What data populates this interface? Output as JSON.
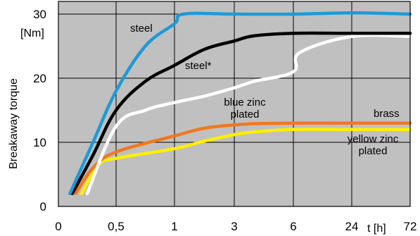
{
  "chart_data": {
    "type": "line",
    "title": "",
    "xlabel": "t [h]",
    "ylabel": "Breakaway torque",
    "yunit": "[Nm]",
    "x_ticks": [
      "0",
      "0,5",
      "1",
      "3",
      "6",
      "24",
      "72"
    ],
    "y_ticks": [
      "0",
      "10",
      "20",
      "30"
    ],
    "ylim": [
      0,
      30
    ],
    "grid": true,
    "colors": {
      "plot_bg": "#c0c0c0",
      "steel": "#1e9ad6",
      "steel*": "#000000",
      "blue zinc plated": "#ffffff",
      "brass": "#f07820",
      "yellow zinc plated": "#ffee00"
    },
    "series": [
      {
        "name": "steel",
        "label_lines": [
          "steel"
        ],
        "color": "#1e9ad6",
        "points": [
          [
            0.1,
            2
          ],
          [
            0.3,
            10
          ],
          [
            0.5,
            18
          ],
          [
            0.75,
            25
          ],
          [
            1,
            28.5
          ],
          [
            1.3,
            30
          ],
          [
            3,
            30
          ],
          [
            6,
            30
          ],
          [
            24,
            30.2
          ],
          [
            72,
            30
          ]
        ]
      },
      {
        "name": "steel*",
        "label_lines": [
          "steel*"
        ],
        "color": "#000000",
        "points": [
          [
            0.12,
            2
          ],
          [
            0.3,
            8
          ],
          [
            0.5,
            15
          ],
          [
            0.75,
            19.5
          ],
          [
            1,
            22
          ],
          [
            2,
            24.5
          ],
          [
            3,
            25.8
          ],
          [
            4,
            26.6
          ],
          [
            6,
            27
          ],
          [
            24,
            27
          ],
          [
            72,
            27
          ]
        ]
      },
      {
        "name": "blue zinc plated",
        "label_lines": [
          "blue zinc",
          "plated"
        ],
        "color": "#ffffff",
        "points": [
          [
            0.25,
            2
          ],
          [
            0.5,
            12.5
          ],
          [
            0.75,
            15
          ],
          [
            1,
            16.2
          ],
          [
            2,
            17.2
          ],
          [
            3,
            18.5
          ],
          [
            4,
            19.5
          ],
          [
            6,
            21
          ],
          [
            8,
            24
          ],
          [
            24,
            26.5
          ],
          [
            72,
            26.5
          ]
        ]
      },
      {
        "name": "brass",
        "label_lines": [
          "brass"
        ],
        "color": "#f07820",
        "points": [
          [
            0.15,
            2
          ],
          [
            0.3,
            6
          ],
          [
            0.5,
            8.5
          ],
          [
            1,
            11
          ],
          [
            2,
            12.2
          ],
          [
            3,
            12.7
          ],
          [
            4,
            12.9
          ],
          [
            6,
            13
          ],
          [
            24,
            13
          ],
          [
            72,
            13
          ]
        ]
      },
      {
        "name": "yellow zinc plated",
        "label_lines": [
          "yellow zinc",
          "plated"
        ],
        "color": "#ffee00",
        "points": [
          [
            0.2,
            2
          ],
          [
            0.35,
            6.5
          ],
          [
            0.5,
            7.5
          ],
          [
            1,
            9
          ],
          [
            2,
            10.2
          ],
          [
            3,
            11.2
          ],
          [
            4,
            11.6
          ],
          [
            6,
            12
          ],
          [
            24,
            12
          ],
          [
            72,
            12
          ]
        ]
      }
    ]
  }
}
